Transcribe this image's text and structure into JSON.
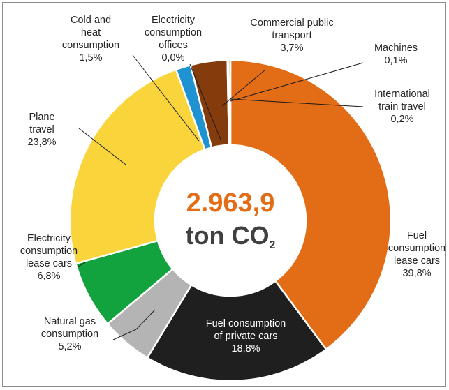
{
  "chart_data": {
    "type": "pie",
    "center_value": "2.963,9",
    "center_unit": "ton CO",
    "center_unit_sub": "2",
    "slices": [
      {
        "label_lines": [
          "Fuel",
          "consumption",
          "lease cars"
        ],
        "pct_text": "39,8%",
        "value": 39.8,
        "color": "#e36c16",
        "label_color": "#262626"
      },
      {
        "label_lines": [
          "Fuel consumption",
          "of private cars"
        ],
        "pct_text": "18,8%",
        "value": 18.8,
        "color": "#1f1f1f",
        "label_color": "#ffffff"
      },
      {
        "label_lines": [
          "Natural gas",
          "consumption"
        ],
        "pct_text": "5,2%",
        "value": 5.2,
        "color": "#b4b4b4",
        "label_color": "#262626"
      },
      {
        "label_lines": [
          "Electricity",
          "consumption",
          "lease cars"
        ],
        "pct_text": "6,8%",
        "value": 6.8,
        "color": "#13a33e",
        "label_color": "#262626"
      },
      {
        "label_lines": [
          "Plane",
          "travel"
        ],
        "pct_text": "23,8%",
        "value": 23.8,
        "color": "#f9d53b",
        "label_color": "#262626"
      },
      {
        "label_lines": [
          "Cold and",
          "heat",
          "consumption"
        ],
        "pct_text": "1,5%",
        "value": 1.5,
        "color": "#1f93d1",
        "label_color": "#262626"
      },
      {
        "label_lines": [
          "Electricity",
          "consumption",
          "offices"
        ],
        "pct_text": "0,0%",
        "value": 0.0,
        "color": "#a03a24",
        "label_color": "#262626"
      },
      {
        "label_lines": [
          "Commercial public",
          "transport"
        ],
        "pct_text": "3,7%",
        "value": 3.7,
        "color": "#843c0c",
        "label_color": "#262626"
      },
      {
        "label_lines": [
          "Machines"
        ],
        "pct_text": "0,1%",
        "value": 0.1,
        "color": "#2e75b6",
        "label_color": "#262626"
      },
      {
        "label_lines": [
          "International",
          "train travel"
        ],
        "pct_text": "0,2%",
        "value": 0.2,
        "color": "#70ad47",
        "label_color": "#262626"
      }
    ]
  },
  "colors": {
    "center_value": "#e36c16",
    "center_unit": "#404040",
    "leader_line": "#1a1a1a",
    "slice_border": "#ffffff"
  }
}
